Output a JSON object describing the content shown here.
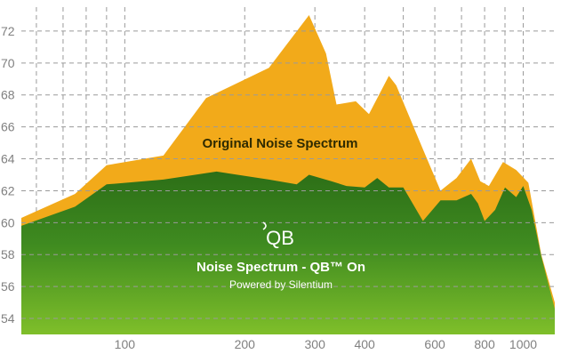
{
  "chart_data": {
    "type": "area",
    "x_scale": "log",
    "xlim": [
      55,
      1200
    ],
    "ylim": [
      53,
      73.5
    ],
    "y_ticks": [
      54,
      56,
      58,
      60,
      62,
      64,
      66,
      68,
      70,
      72
    ],
    "x_ticks": [
      100,
      200,
      300,
      400,
      600,
      800,
      1000
    ],
    "x_minor_grid": [
      60,
      70,
      80,
      90,
      500,
      700,
      900
    ],
    "grid": true,
    "series": [
      {
        "name": "Original Noise Spectrum",
        "color": "#f2aa1a",
        "x": [
          55,
          75,
          90,
          125,
          160,
          230,
          290,
          320,
          340,
          380,
          410,
          460,
          480,
          560,
          620,
          680,
          740,
          780,
          820,
          890,
          960,
          1030,
          1110,
          1200
        ],
        "y": [
          60.3,
          61.8,
          63.6,
          64.2,
          67.8,
          69.7,
          73.0,
          70.6,
          67.4,
          67.6,
          66.8,
          69.2,
          68.6,
          64.6,
          62.0,
          62.8,
          64.0,
          62.6,
          62.3,
          63.8,
          63.3,
          62.5,
          58.0,
          55.0
        ]
      },
      {
        "name": "Noise Spectrum - QB™ On",
        "color": "#3f8a20",
        "x": [
          55,
          75,
          90,
          125,
          170,
          230,
          270,
          290,
          330,
          360,
          400,
          430,
          460,
          500,
          560,
          620,
          680,
          740,
          770,
          800,
          850,
          900,
          960,
          1000,
          1050,
          1110,
          1200
        ],
        "y": [
          59.8,
          61.0,
          62.4,
          62.7,
          63.2,
          62.7,
          62.4,
          63.0,
          62.6,
          62.3,
          62.2,
          62.8,
          62.2,
          62.2,
          60.1,
          61.4,
          61.4,
          61.8,
          61.2,
          60.1,
          60.8,
          62.2,
          61.6,
          62.3,
          60.8,
          57.9,
          54.6
        ]
      }
    ],
    "annotations": {
      "original": "Original Noise Spectrum",
      "qb_on": "Noise Spectrum - QB™ On",
      "powered": "Powered by Silentium",
      "logo": "QB"
    }
  }
}
